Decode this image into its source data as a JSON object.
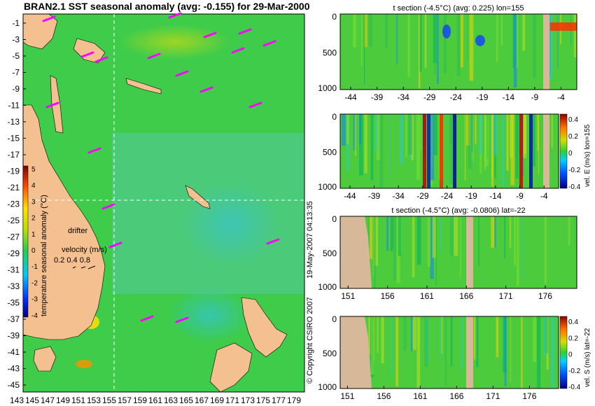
{
  "map": {
    "title": "BRAN2.1 SST seasonal anomaly (avg: -0.155) for 29-Mar-2000",
    "y_ticks": [
      "-1",
      "-3",
      "-5",
      "-7",
      "-9",
      "-11",
      "-13",
      "-15",
      "-17",
      "-19",
      "-21",
      "-23",
      "-25",
      "-27",
      "-29",
      "-31",
      "-33",
      "-35",
      "-37",
      "-39",
      "-41",
      "-43",
      "-45"
    ],
    "x_ticks": [
      "143",
      "145",
      "147",
      "149",
      "151",
      "153",
      "155",
      "157",
      "159",
      "161",
      "163",
      "165",
      "167",
      "169",
      "171",
      "173",
      "175",
      "177",
      "179"
    ],
    "colorbar": {
      "label": "temperature seasonal anomaly (°C)",
      "ticks": [
        "5",
        "4",
        "3",
        "2",
        "1",
        "0",
        "-1",
        "-2",
        "-3",
        "-4"
      ]
    },
    "drifter_label": "drifter",
    "velocity_label": "velocity (m/s)",
    "velocity_scale": "0.2 0.4 0.8",
    "crosshair": {
      "lon": 155,
      "lat": -22
    }
  },
  "vertical_text": {
    "date": "19-May-2007 04:13:35",
    "copyright": "© Copyright CSIRO 2007"
  },
  "panels": [
    {
      "title": "t section (-4.5°C) (avg: 0.225) lon=155",
      "x_ticks": [
        "-44",
        "-39",
        "-34",
        "-29",
        "-24",
        "-19",
        "-14",
        "-9",
        "-4"
      ],
      "y_ticks": [
        "0",
        "500",
        "1000"
      ]
    },
    {
      "title": "",
      "x_ticks": [
        "-44",
        "-39",
        "-34",
        "-29",
        "-24",
        "-19",
        "-14",
        "-9",
        "-4"
      ],
      "y_ticks": [
        "0",
        "500",
        "1000"
      ],
      "colorbar_label": "vel. E (m/s) lon=155",
      "colorbar_ticks": [
        "0.4",
        "0.2",
        "0",
        "-0.2",
        "-0.4"
      ]
    },
    {
      "title": "t section (-4.5°C) (avg: -0.0806) lat=-22",
      "x_ticks": [
        "151",
        "156",
        "161",
        "166",
        "171",
        "176"
      ],
      "y_ticks": [
        "0",
        "500",
        "1000"
      ]
    },
    {
      "title": "",
      "x_ticks": [
        "151",
        "156",
        "161",
        "166",
        "171",
        "176"
      ],
      "y_ticks": [
        "0",
        "500",
        "1000"
      ],
      "colorbar_label": "vel. S (m/s) lat=-22",
      "colorbar_ticks": [
        "0.4",
        "0.2",
        "0",
        "-0.2",
        "-0.4"
      ]
    }
  ],
  "chart_data": [
    {
      "type": "heatmap",
      "title": "BRAN2.1 SST seasonal anomaly (avg: -0.155) for 29-Mar-2000",
      "xlim": [
        143,
        180
      ],
      "ylim": [
        -45,
        0
      ],
      "colorbar_range": [
        -4,
        5
      ],
      "colorbar_label": "temperature seasonal anomaly (°C)"
    },
    {
      "type": "heatmap",
      "title": "t section (-4.5°C) (avg: 0.225) lon=155",
      "xlim": [
        -46,
        -1
      ],
      "ylim": [
        1050,
        0
      ]
    },
    {
      "type": "heatmap",
      "xlim": [
        -46,
        -1
      ],
      "ylim": [
        1050,
        0
      ],
      "colorbar_label": "vel. E (m/s) lon=155",
      "colorbar_range": [
        -0.4,
        0.4
      ]
    },
    {
      "type": "heatmap",
      "title": "t section (-4.5°C) (avg: -0.0806) lat=-22",
      "xlim": [
        150,
        180
      ],
      "ylim": [
        1050,
        0
      ]
    },
    {
      "type": "heatmap",
      "xlim": [
        150,
        180
      ],
      "ylim": [
        1050,
        0
      ],
      "colorbar_label": "vel. S (m/s) lat=-22",
      "colorbar_range": [
        -0.4,
        0.4
      ]
    }
  ]
}
